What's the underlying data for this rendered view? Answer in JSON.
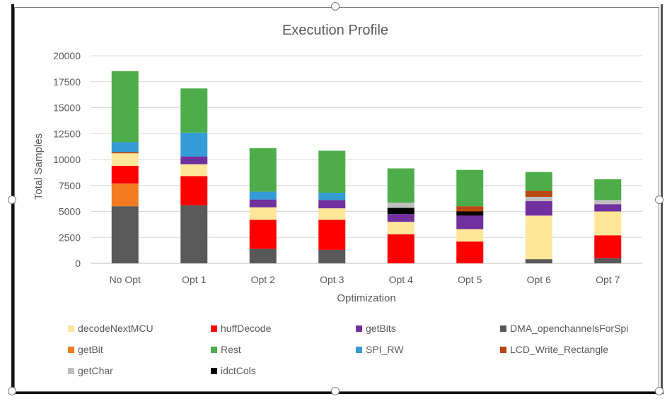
{
  "chart_data": {
    "type": "bar",
    "stacked": true,
    "title": "Execution Profile",
    "xlabel": "Optimization",
    "ylabel": "Total Samples",
    "ylim": [
      0,
      20000
    ],
    "yticks": [
      0,
      2500,
      5000,
      7500,
      10000,
      12500,
      15000,
      17500,
      20000
    ],
    "yticklabels": [
      "0",
      "2500",
      "5000",
      "7500",
      "10000",
      "12500",
      "15000",
      "17500",
      "20000"
    ],
    "grid": true,
    "legend_position": "bottom",
    "categories": [
      "No Opt",
      "Opt 1",
      "Opt 2",
      "Opt 3",
      "Opt 4",
      "Opt 5",
      "Opt 6",
      "Opt 7"
    ],
    "stack_order": [
      "DMA_openchannelsForSpi",
      "getBit",
      "huffDecode",
      "decodeNextMCU",
      "getBits",
      "idctCols",
      "getChar",
      "LCD_Write_Rectangle",
      "SPI_RW",
      "Rest"
    ],
    "series": [
      {
        "name": "decodeNextMCU",
        "color": "#FFE699",
        "values": [
          1200,
          1150,
          1200,
          1100,
          1200,
          1200,
          4200,
          2300
        ]
      },
      {
        "name": "huffDecode",
        "color": "#FF0000",
        "values": [
          1700,
          2800,
          2800,
          2900,
          2800,
          2100,
          0,
          2200
        ]
      },
      {
        "name": "getBits",
        "color": "#7030A0",
        "values": [
          0,
          750,
          750,
          800,
          750,
          1300,
          1400,
          700
        ]
      },
      {
        "name": "DMA_openchannelsForSpi",
        "color": "#595959",
        "values": [
          5500,
          5600,
          1400,
          1300,
          0,
          0,
          400,
          500
        ]
      },
      {
        "name": "getBit",
        "color": "#F47B20",
        "values": [
          2200,
          0,
          0,
          0,
          0,
          0,
          0,
          0
        ]
      },
      {
        "name": "Rest",
        "color": "#4EAD4B",
        "values": [
          6850,
          4250,
          4200,
          4050,
          3300,
          3500,
          1800,
          2000
        ]
      },
      {
        "name": "SPI_RW",
        "color": "#339CD7",
        "values": [
          950,
          2300,
          750,
          700,
          0,
          0,
          0,
          0
        ]
      },
      {
        "name": "LCD_Write_Rectangle",
        "color": "#B9470F",
        "values": [
          120,
          0,
          0,
          0,
          0,
          500,
          600,
          0
        ]
      },
      {
        "name": "getChar",
        "color": "#BFBFBF",
        "values": [
          0,
          0,
          0,
          0,
          500,
          0,
          400,
          400
        ]
      },
      {
        "name": "idctCols",
        "color": "#000000",
        "values": [
          0,
          0,
          0,
          0,
          600,
          400,
          0,
          0
        ]
      }
    ]
  }
}
